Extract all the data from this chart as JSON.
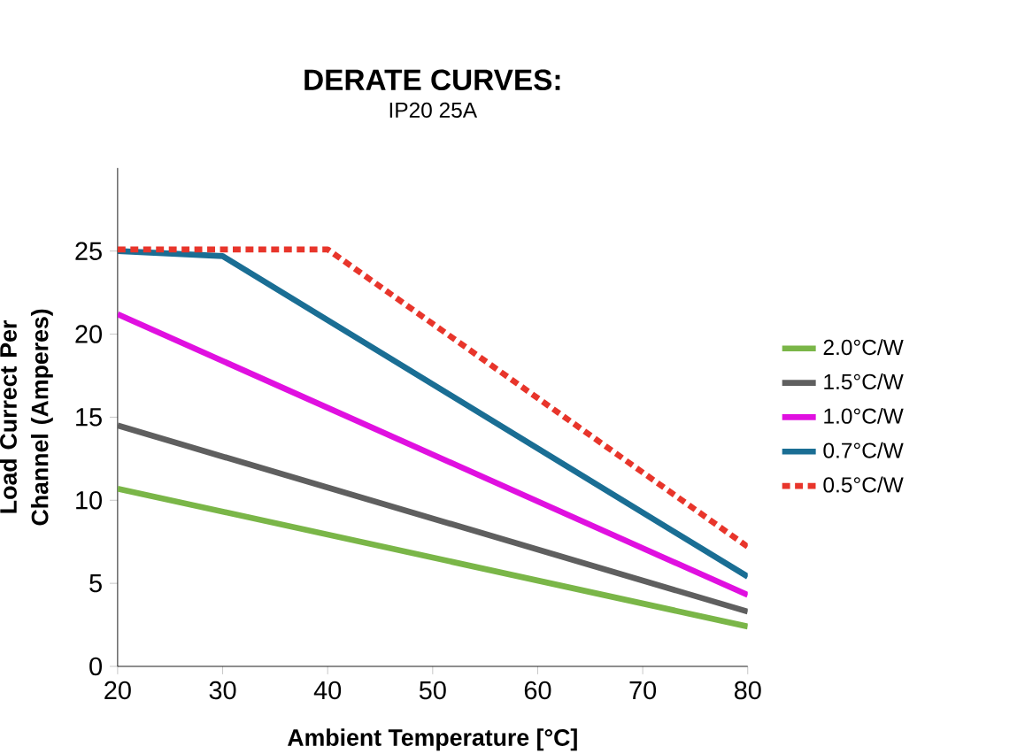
{
  "chart_data": {
    "type": "line",
    "title": "DERATE CURVES:",
    "subtitle": "IP20 25A",
    "xlabel": "Ambient Temperature [°C]",
    "ylabel": "Load Currect Per Channel (Amperes)",
    "xlim": [
      20,
      80
    ],
    "xticks": [
      20,
      30,
      40,
      50,
      60,
      70,
      80
    ],
    "ylim": [
      0,
      30
    ],
    "yticks": [
      0,
      5,
      10,
      15,
      20,
      25
    ],
    "legend": "right",
    "grid": false,
    "series": [
      {
        "name": "2.0°C/W",
        "color": "#7ab648",
        "line_style": "solid",
        "x": [
          20,
          80
        ],
        "values": [
          10.7,
          2.4
        ]
      },
      {
        "name": "1.5°C/W",
        "color": "#5f5f5f",
        "line_style": "solid",
        "x": [
          20,
          80
        ],
        "values": [
          14.5,
          3.3
        ]
      },
      {
        "name": "1.0°C/W",
        "color": "#e010e0",
        "line_style": "solid",
        "x": [
          20,
          80
        ],
        "values": [
          21.2,
          4.3
        ]
      },
      {
        "name": "0.7°C/W",
        "color": "#1a6e94",
        "line_style": "solid",
        "x": [
          20,
          30,
          80
        ],
        "values": [
          25,
          24.7,
          5.4
        ]
      },
      {
        "name": "0.5°C/W",
        "color": "#e8352b",
        "line_style": "dashed",
        "x": [
          20,
          40,
          80
        ],
        "values": [
          25.1,
          25.1,
          7.2
        ]
      }
    ]
  }
}
